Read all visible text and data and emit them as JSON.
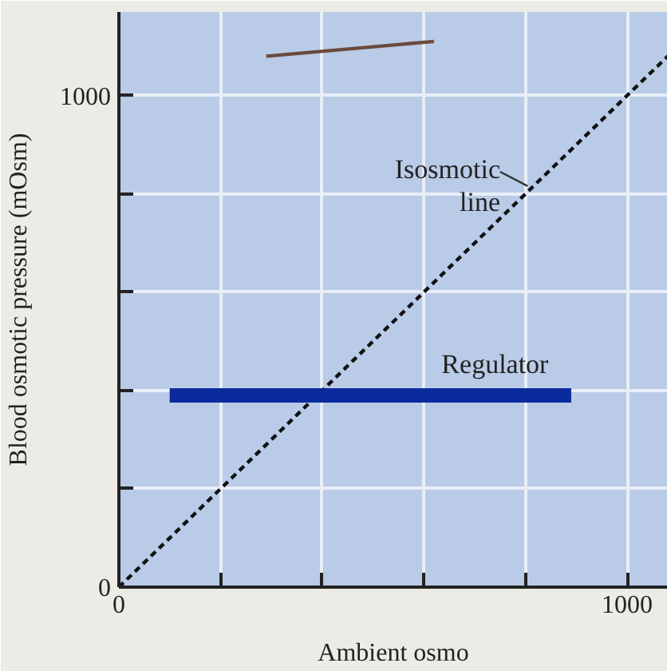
{
  "chart_data": {
    "type": "line",
    "xlabel": "Ambient osmo",
    "ylabel": "Blood osmotic pressure (mOsm)",
    "xlim": [
      0,
      1080
    ],
    "ylim": [
      0,
      1170
    ],
    "xticks": [
      0,
      {
        "value": 200,
        "label": null
      },
      {
        "value": 400,
        "label": null
      },
      {
        "value": 600,
        "label": null
      },
      {
        "value": 800,
        "label": null
      },
      1000
    ],
    "yticks": [
      0,
      {
        "value": 200,
        "label": null
      },
      {
        "value": 400,
        "label": null
      },
      {
        "value": 600,
        "label": null
      },
      {
        "value": 800,
        "label": null
      },
      1000
    ],
    "grid": true,
    "marker": "none",
    "series": [
      {
        "line_style": "dashed",
        "color": "#111111",
        "x": [
          0,
          1080
        ],
        "values": [
          0,
          1080
        ]
      },
      {
        "line_style": "solid",
        "color": "#0b2a9c",
        "x": [
          100,
          890
        ],
        "values": [
          390,
          390
        ]
      },
      {
        "line_style": "solid",
        "color": "#6b4a3e",
        "x": [
          290,
          620
        ],
        "values": [
          1080,
          1110
        ]
      }
    ],
    "annotations": [
      {
        "text": "Isosmotic\nline",
        "x": 810,
        "y": 810
      },
      {
        "text": "Regulator",
        "x": 740,
        "y": 390
      }
    ]
  }
}
